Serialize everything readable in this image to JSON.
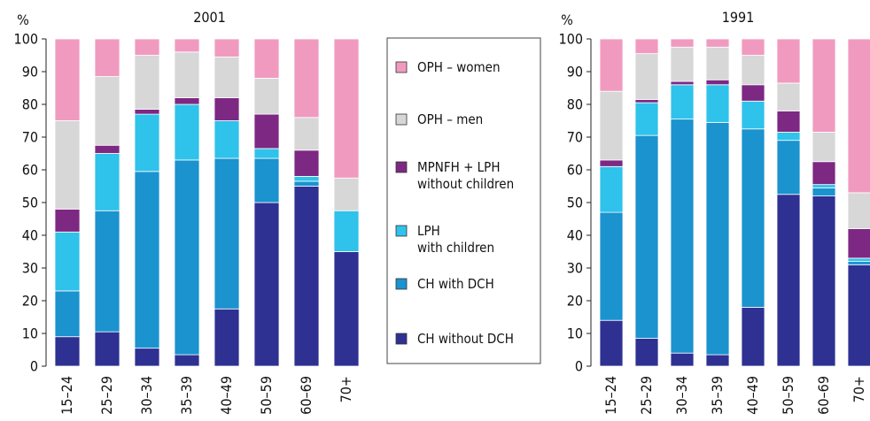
{
  "chart_data": [
    {
      "type": "bar",
      "stacked": true,
      "title": "2001",
      "ylabel": "%",
      "ylim": [
        0,
        100
      ],
      "yticks": [
        0,
        10,
        20,
        30,
        40,
        50,
        60,
        70,
        80,
        90,
        100
      ],
      "categories": [
        "15–24",
        "25–29",
        "30–34",
        "35–39",
        "40–49",
        "50–59",
        "60–69",
        "70+"
      ],
      "series": [
        {
          "name": "CH without DCH",
          "values": [
            9,
            10.5,
            5.5,
            3.5,
            17.5,
            50,
            55,
            35
          ]
        },
        {
          "name": "CH with DCH",
          "values": [
            14,
            37,
            54,
            59.5,
            46,
            13.5,
            1.5,
            0
          ]
        },
        {
          "name": "LPH with children",
          "values": [
            18,
            17.5,
            17.5,
            17,
            11.5,
            3,
            1.5,
            12.5
          ]
        },
        {
          "name": "MPNFH + LPH without children",
          "values": [
            7,
            2.5,
            1.5,
            2,
            7,
            10.5,
            8,
            0
          ]
        },
        {
          "name": "OPH – men",
          "values": [
            27,
            21,
            16.5,
            14,
            12.5,
            11,
            10,
            10
          ]
        },
        {
          "name": "OPH – women",
          "values": [
            25,
            11.5,
            5,
            4,
            5.5,
            12,
            24,
            42.5
          ]
        }
      ]
    },
    {
      "type": "bar",
      "stacked": true,
      "title": "1991",
      "ylabel": "%",
      "ylim": [
        0,
        100
      ],
      "yticks": [
        0,
        10,
        20,
        30,
        40,
        50,
        60,
        70,
        80,
        90,
        100
      ],
      "categories": [
        "15–24",
        "25–29",
        "30–34",
        "35–39",
        "40–49",
        "50–59",
        "60–69",
        "70+"
      ],
      "series": [
        {
          "name": "CH without DCH",
          "values": [
            14,
            8.5,
            4,
            3.5,
            18,
            52.5,
            52,
            31
          ]
        },
        {
          "name": "CH with DCH",
          "values": [
            33,
            62,
            71.5,
            71,
            54.5,
            16.5,
            2.5,
            1
          ]
        },
        {
          "name": "LPH with children",
          "values": [
            14,
            10,
            10.5,
            11.5,
            8.5,
            2.5,
            1,
            1
          ]
        },
        {
          "name": "MPNFH + LPH without children",
          "values": [
            2,
            1,
            1,
            1.5,
            5,
            6.5,
            7,
            9
          ]
        },
        {
          "name": "OPH – men",
          "values": [
            21,
            14,
            10.5,
            10,
            9,
            8.5,
            9,
            11
          ]
        },
        {
          "name": "OPH – women",
          "values": [
            16,
            4.5,
            2.5,
            2.5,
            5,
            13.5,
            28.5,
            47
          ]
        }
      ]
    }
  ],
  "legend": {
    "items": [
      {
        "label_lines": [
          "OPH  –  women"
        ],
        "color": "#f19ac0"
      },
      {
        "label_lines": [
          "OPH  –  men"
        ],
        "color": "#d7d7d7"
      },
      {
        "label_lines": [
          "MPNFH  +  LPH",
          "without children"
        ],
        "color": "#7d2882"
      },
      {
        "label_lines": [
          "LPH",
          "with  children"
        ],
        "color": "#2fc2ea"
      },
      {
        "label_lines": [
          "CH  with  DCH"
        ],
        "color": "#1a93ce"
      },
      {
        "label_lines": [
          "CH  without  DCH"
        ],
        "color": "#2e3192"
      }
    ]
  },
  "colors": {
    "CH without DCH": "#2e3192",
    "CH with DCH": "#1a93ce",
    "LPH with children": "#2fc2ea",
    "MPNFH + LPH without children": "#7d2882",
    "OPH – men": "#d7d7d7",
    "OPH – women": "#f19ac0"
  }
}
